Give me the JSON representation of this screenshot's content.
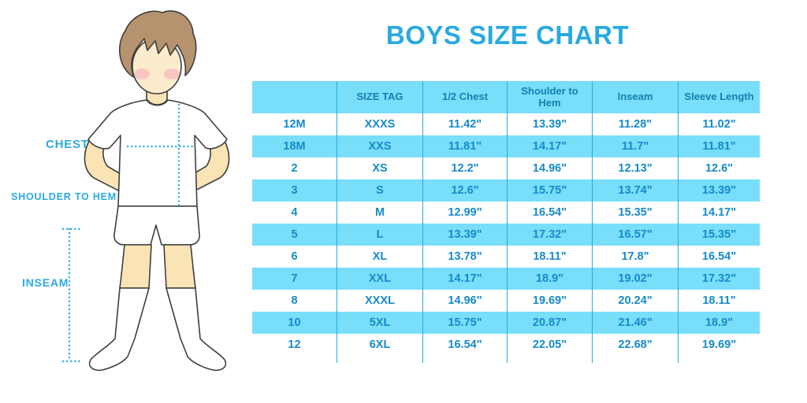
{
  "title": "BOYS SIZE CHART",
  "figure_labels": {
    "chest": "CHEST",
    "shoulder_to_hem": "SHOULDER TO HEM",
    "inseam": "INSEAM"
  },
  "colors": {
    "accent_blue": "#29A9E1",
    "band_blue": "#78DEF9",
    "divider_blue": "#2BA9E0",
    "dotted_line_blue": "#2BAAE2",
    "header_text": "#1380B0",
    "cell_text": "#168AC9"
  },
  "chart_data": {
    "type": "table",
    "title": "BOYS SIZE CHART",
    "columns": [
      "",
      "SIZE TAG",
      "1/2 Chest",
      "Shoulder to Hem",
      "Inseam",
      "Sleeve Length"
    ],
    "rows": [
      [
        "12M",
        "XXXS",
        "11.42\"",
        "13.39\"",
        "11.28\"",
        "11.02\""
      ],
      [
        "18M",
        "XXS",
        "11.81\"",
        "14.17\"",
        "11.7\"",
        "11.81\""
      ],
      [
        "2",
        "XS",
        "12.2\"",
        "14.96\"",
        "12.13\"",
        "12.6\""
      ],
      [
        "3",
        "S",
        "12.6\"",
        "15.75\"",
        "13.74\"",
        "13.39\""
      ],
      [
        "4",
        "M",
        "12.99\"",
        "16.54\"",
        "15.35\"",
        "14.17\""
      ],
      [
        "5",
        "L",
        "13.39\"",
        "17.32\"",
        "16.57\"",
        "15.35\""
      ],
      [
        "6",
        "XL",
        "13.78\"",
        "18.11\"",
        "17.8\"",
        "16.54\""
      ],
      [
        "7",
        "XXL",
        "14.17\"",
        "18.9\"",
        "19.02\"",
        "17.32\""
      ],
      [
        "8",
        "XXXL",
        "14.96\"",
        "19.69\"",
        "20.24\"",
        "18.11\""
      ],
      [
        "10",
        "5XL",
        "15.75\"",
        "20.87\"",
        "21.46\"",
        "18.9\""
      ],
      [
        "12",
        "6XL",
        "16.54\"",
        "22.05\"",
        "22.68\"",
        "19.69\""
      ]
    ]
  }
}
